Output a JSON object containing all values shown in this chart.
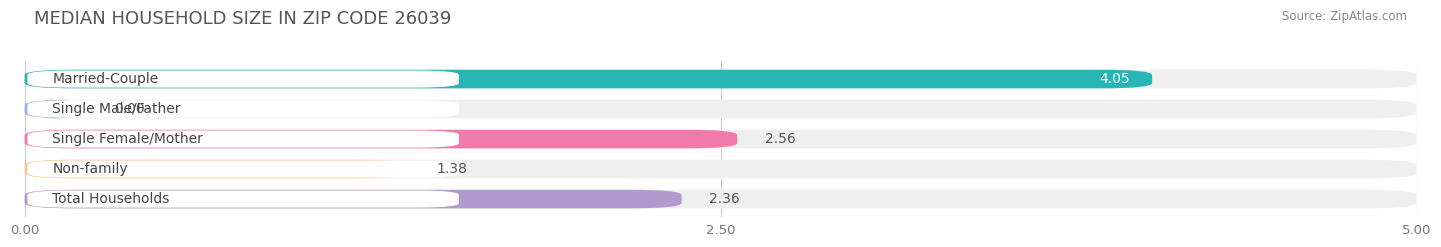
{
  "title": "MEDIAN HOUSEHOLD SIZE IN ZIP CODE 26039",
  "source": "Source: ZipAtlas.com",
  "categories": [
    "Married-Couple",
    "Single Male/Father",
    "Single Female/Mother",
    "Non-family",
    "Total Households"
  ],
  "values": [
    4.05,
    0.0,
    2.56,
    1.38,
    2.36
  ],
  "bar_colors": [
    "#29b5b5",
    "#9ab5e0",
    "#f07aaa",
    "#f5c98a",
    "#b09ace"
  ],
  "bar_bg_colors": [
    "#efefef",
    "#efefef",
    "#efefef",
    "#efefef",
    "#efefef"
  ],
  "value_in_bar": [
    true,
    false,
    false,
    false,
    false
  ],
  "value_colors_in": [
    "white"
  ],
  "value_colors_out": [
    "#555555"
  ],
  "xlim": [
    0,
    5.0
  ],
  "xticks": [
    0.0,
    2.5,
    5.0
  ],
  "xtick_labels": [
    "0.00",
    "2.50",
    "5.00"
  ],
  "bar_height": 0.62,
  "bar_gap": 0.38,
  "label_fontsize": 10,
  "value_fontsize": 10,
  "title_fontsize": 13,
  "background_color": "#ffffff"
}
